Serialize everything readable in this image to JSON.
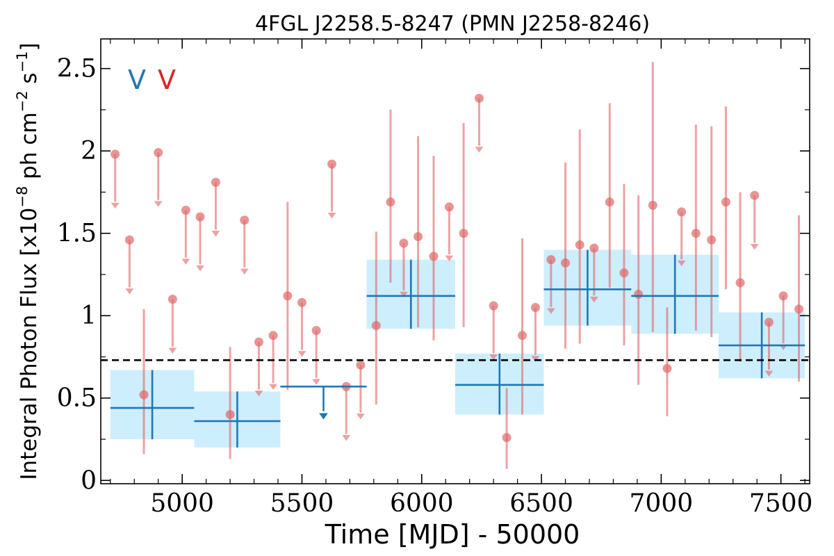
{
  "chart_data": {
    "type": "scatter",
    "title": "4FGL J2258.5-8247 (PMN J2258-8246)",
    "xlabel": "Time [MJD] - 50000",
    "ylabel": "Integral Photon Flux [x10$^{-8}$ ph cm$^{-2}$ s$^{-1}$]",
    "ylabel_parts": {
      "pre": "Integral Photon Flux [x10",
      "exp1": "−8",
      "mid": " ph cm",
      "exp2": "−2",
      "mid2": " s",
      "exp3": "−1",
      "post": "]"
    },
    "xlim": [
      4660,
      7620
    ],
    "ylim": [
      -0.02,
      2.68
    ],
    "xticks": [
      5000,
      5500,
      6000,
      6500,
      7000,
      7500
    ],
    "xtick_labels": [
      "5000",
      "5500",
      "6000",
      "6500",
      "7000",
      "7500"
    ],
    "yticks": [
      0,
      0.5,
      1,
      1.5,
      2,
      2.5
    ],
    "ytick_labels": [
      "0",
      "0.5",
      "1",
      "1.5",
      "2",
      "2.5"
    ],
    "x_minor_step": 100,
    "y_minor_step": 0.25,
    "grid": false,
    "legend": {
      "placement": "top-left",
      "entries": [
        {
          "label": "V",
          "color": "#1f77b4"
        },
        {
          "label": "V",
          "color": "#d62728"
        }
      ]
    },
    "reference_line": {
      "y": 0.73,
      "color": "#000000",
      "style": "dashed"
    },
    "colors": {
      "long_bin_line": "#1f77b4",
      "long_bin_band": "#cdeefd",
      "short_bin": "#e06666"
    },
    "series": [
      {
        "name": "",
        "kind": "long_bins",
        "bins": [
          {
            "x0": 4700,
            "x1": 5050,
            "y": 0.44,
            "ylo": 0.25,
            "yhi": 0.67
          },
          {
            "x0": 5050,
            "x1": 5410,
            "y": 0.36,
            "ylo": 0.2,
            "yhi": 0.54
          },
          {
            "x0": 5410,
            "x1": 5770,
            "y": 0.57,
            "upper_limit": true
          },
          {
            "x0": 5770,
            "x1": 6140,
            "y": 1.12,
            "ylo": 0.92,
            "yhi": 1.34
          },
          {
            "x0": 6140,
            "x1": 6510,
            "y": 0.58,
            "ylo": 0.4,
            "yhi": 0.77
          },
          {
            "x0": 6510,
            "x1": 6875,
            "y": 1.16,
            "ylo": 0.94,
            "yhi": 1.4
          },
          {
            "x0": 6875,
            "x1": 7240,
            "y": 1.12,
            "ylo": 0.89,
            "yhi": 1.37
          },
          {
            "x0": 7240,
            "x1": 7600,
            "y": 0.82,
            "ylo": 0.62,
            "yhi": 1.02
          }
        ]
      },
      {
        "name": "",
        "kind": "short_bins",
        "points": [
          {
            "x": 4720,
            "y": 1.98,
            "upper_limit": true
          },
          {
            "x": 4780,
            "y": 1.46,
            "upper_limit": true
          },
          {
            "x": 4840,
            "y": 0.52,
            "ylo": 0.16,
            "yhi": 1.04
          },
          {
            "x": 4900,
            "y": 1.99,
            "upper_limit": true
          },
          {
            "x": 4960,
            "y": 1.1,
            "upper_limit": true
          },
          {
            "x": 5015,
            "y": 1.64,
            "upper_limit": true
          },
          {
            "x": 5075,
            "y": 1.6,
            "upper_limit": true
          },
          {
            "x": 5140,
            "y": 1.81,
            "upper_limit": true
          },
          {
            "x": 5200,
            "y": 0.4,
            "ylo": 0.13,
            "yhi": 0.81
          },
          {
            "x": 5260,
            "y": 1.58,
            "upper_limit": true
          },
          {
            "x": 5320,
            "y": 0.84,
            "upper_limit": true
          },
          {
            "x": 5380,
            "y": 0.88,
            "upper_limit": true
          },
          {
            "x": 5440,
            "y": 1.12,
            "ylo": 0.55,
            "yhi": 1.69
          },
          {
            "x": 5500,
            "y": 1.08,
            "upper_limit": true
          },
          {
            "x": 5560,
            "y": 0.91,
            "upper_limit": true
          },
          {
            "x": 5625,
            "y": 1.92,
            "upper_limit": true
          },
          {
            "x": 5685,
            "y": 0.57,
            "upper_limit": true
          },
          {
            "x": 5745,
            "y": 0.7,
            "upper_limit": true
          },
          {
            "x": 5810,
            "y": 0.94,
            "ylo": 0.46,
            "yhi": 1.51
          },
          {
            "x": 5870,
            "y": 1.69,
            "ylo": 1.2,
            "yhi": 2.25
          },
          {
            "x": 5925,
            "y": 1.44,
            "upper_limit": true
          },
          {
            "x": 5985,
            "y": 1.48,
            "ylo": 0.93,
            "yhi": 2.09
          },
          {
            "x": 6050,
            "y": 1.36,
            "ylo": 0.85,
            "yhi": 1.97
          },
          {
            "x": 6115,
            "y": 1.66,
            "upper_limit": true
          },
          {
            "x": 6175,
            "y": 1.5,
            "ylo": 0.93,
            "yhi": 2.17
          },
          {
            "x": 6240,
            "y": 2.32,
            "upper_limit": true
          },
          {
            "x": 6300,
            "y": 1.06,
            "upper_limit": true
          },
          {
            "x": 6355,
            "y": 0.26,
            "ylo": 0.07,
            "yhi": 0.56
          },
          {
            "x": 6420,
            "y": 0.88,
            "ylo": 0.4,
            "yhi": 1.47
          },
          {
            "x": 6475,
            "y": 1.05,
            "upper_limit": true
          },
          {
            "x": 6540,
            "y": 1.34,
            "upper_limit": true
          },
          {
            "x": 6600,
            "y": 1.32,
            "ylo": 0.8,
            "yhi": 1.93
          },
          {
            "x": 6660,
            "y": 1.43,
            "ylo": 0.83,
            "yhi": 2.13
          },
          {
            "x": 6720,
            "y": 1.41,
            "upper_limit": true
          },
          {
            "x": 6785,
            "y": 1.69,
            "ylo": 1.17,
            "yhi": 2.29
          },
          {
            "x": 6845,
            "y": 1.26,
            "ylo": 0.82,
            "yhi": 1.8
          },
          {
            "x": 6905,
            "y": 1.13,
            "ylo": 0.58,
            "yhi": 1.73
          },
          {
            "x": 6965,
            "y": 1.67,
            "ylo": 0.9,
            "yhi": 2.54
          },
          {
            "x": 7025,
            "y": 0.68,
            "ylo": 0.39,
            "yhi": 1.05
          },
          {
            "x": 7085,
            "y": 1.63,
            "upper_limit": true
          },
          {
            "x": 7145,
            "y": 1.5,
            "ylo": 0.91,
            "yhi": 2.16
          },
          {
            "x": 7210,
            "y": 1.46,
            "ylo": 0.87,
            "yhi": 2.15
          },
          {
            "x": 7270,
            "y": 1.69,
            "ylo": 1.16,
            "yhi": 2.27
          },
          {
            "x": 7330,
            "y": 1.2,
            "ylo": 0.72,
            "yhi": 1.75
          },
          {
            "x": 7390,
            "y": 1.73,
            "upper_limit": true
          },
          {
            "x": 7450,
            "y": 0.96,
            "upper_limit": true
          },
          {
            "x": 7510,
            "y": 1.12,
            "upper_limit": true
          },
          {
            "x": 7575,
            "y": 1.04,
            "ylo": 0.6,
            "yhi": 1.61
          }
        ]
      }
    ]
  }
}
